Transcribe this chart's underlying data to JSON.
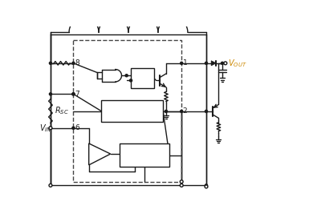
{
  "bg_color": "#ffffff",
  "lc": "#1a1a1a",
  "dash_color": "#444444",
  "vout_color": "#cc8800",
  "figsize": [
    3.85,
    2.72
  ],
  "dpi": 100,
  "lw": 1.0
}
